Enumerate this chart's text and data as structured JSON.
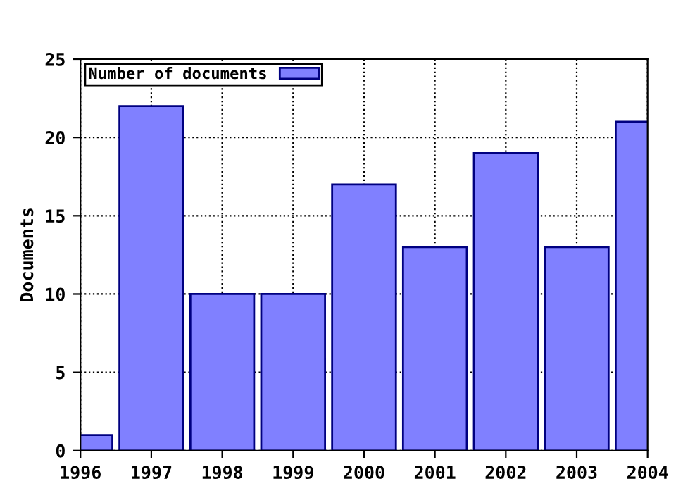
{
  "chart_data": {
    "type": "bar",
    "ylabel": "Documents",
    "x": [
      1996,
      1997,
      1998,
      1999,
      2000,
      2001,
      2002,
      2003,
      2004
    ],
    "series": [
      {
        "name": "Number of documents",
        "color": "#8080ff",
        "values": [
          1,
          22,
          10,
          10,
          17,
          13,
          19,
          13,
          21
        ]
      }
    ],
    "xlim": [
      1996,
      2004
    ],
    "xticks": [
      1996,
      1997,
      1998,
      1999,
      2000,
      2001,
      2002,
      2003,
      2004
    ],
    "ylim": [
      0,
      25
    ],
    "yticks": [
      0,
      5,
      10,
      15,
      20,
      25
    ],
    "grid": true,
    "legend": "top left"
  }
}
